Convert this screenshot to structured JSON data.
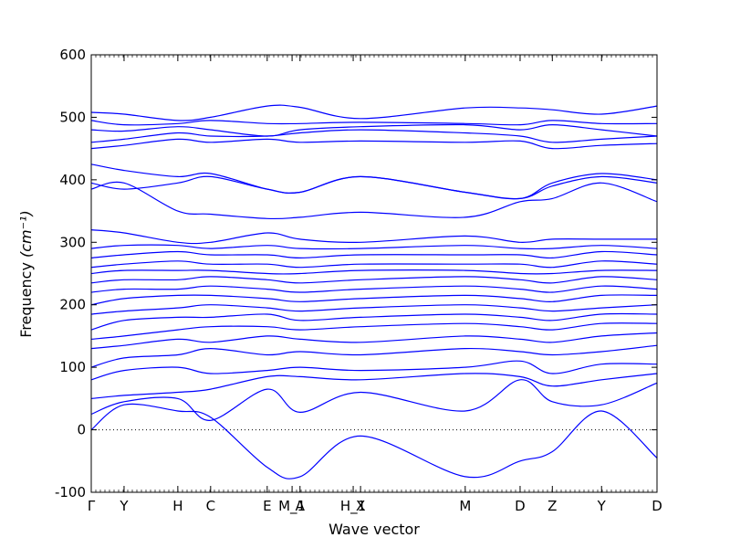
{
  "chart_data": {
    "type": "line",
    "title": "",
    "xlabel": "Wave vector",
    "ylabel": "Frequency",
    "ylabel_unit_math": "(cm⁻¹)",
    "ylim": [
      -100,
      600
    ],
    "yticks": [
      -100,
      0,
      100,
      200,
      300,
      400,
      500,
      600
    ],
    "xlim": [
      0,
      1
    ],
    "xticks": [
      {
        "label": "Γ",
        "pos": 0.0
      },
      {
        "label": "Y",
        "pos": 0.058
      },
      {
        "label": "H",
        "pos": 0.153
      },
      {
        "label": "C",
        "pos": 0.211
      },
      {
        "label": "E",
        "pos": 0.311
      },
      {
        "label": "M_1",
        "pos": 0.355
      },
      {
        "label": "A",
        "pos": 0.369
      },
      {
        "label": "H_1",
        "pos": 0.463
      },
      {
        "label": "X",
        "pos": 0.476
      },
      {
        "label": "M",
        "pos": 0.661
      },
      {
        "label": "D",
        "pos": 0.758
      },
      {
        "label": "Z",
        "pos": 0.815
      },
      {
        "label": "Y",
        "pos": 0.902
      },
      {
        "label": "D",
        "pos": 1.0
      }
    ],
    "zero_line": true,
    "line_color": "#0000ff",
    "series": [
      {
        "x": [
          0,
          0.058,
          0.153,
          0.211,
          0.311,
          0.369,
          0.476,
          0.661,
          0.758,
          0.815,
          0.902,
          1.0
        ],
        "y": [
          0,
          40,
          30,
          20,
          -60,
          -75,
          -10,
          -75,
          -50,
          -35,
          30,
          -45
        ]
      },
      {
        "x": [
          0,
          0.058,
          0.153,
          0.211,
          0.311,
          0.369,
          0.476,
          0.661,
          0.758,
          0.815,
          0.902,
          1.0
        ],
        "y": [
          25,
          45,
          50,
          15,
          65,
          28,
          60,
          30,
          80,
          45,
          40,
          75
        ]
      },
      {
        "x": [
          0,
          0.058,
          0.153,
          0.211,
          0.311,
          0.369,
          0.476,
          0.661,
          0.758,
          0.815,
          0.902,
          1.0
        ],
        "y": [
          50,
          55,
          60,
          65,
          85,
          85,
          80,
          90,
          85,
          70,
          80,
          90
        ]
      },
      {
        "x": [
          0,
          0.058,
          0.153,
          0.211,
          0.311,
          0.369,
          0.476,
          0.661,
          0.758,
          0.815,
          0.902,
          1.0
        ],
        "y": [
          80,
          95,
          100,
          90,
          95,
          100,
          95,
          100,
          110,
          90,
          105,
          105
        ]
      },
      {
        "x": [
          0,
          0.058,
          0.153,
          0.211,
          0.311,
          0.369,
          0.476,
          0.661,
          0.758,
          0.815,
          0.902,
          1.0
        ],
        "y": [
          100,
          115,
          120,
          130,
          120,
          125,
          120,
          130,
          125,
          120,
          125,
          135
        ]
      },
      {
        "x": [
          0,
          0.058,
          0.153,
          0.211,
          0.311,
          0.369,
          0.476,
          0.661,
          0.758,
          0.815,
          0.902,
          1.0
        ],
        "y": [
          130,
          135,
          145,
          140,
          150,
          145,
          140,
          150,
          145,
          140,
          150,
          155
        ]
      },
      {
        "x": [
          0,
          0.058,
          0.153,
          0.211,
          0.311,
          0.369,
          0.476,
          0.661,
          0.758,
          0.815,
          0.902,
          1.0
        ],
        "y": [
          145,
          150,
          160,
          165,
          165,
          160,
          165,
          170,
          165,
          160,
          170,
          170
        ]
      },
      {
        "x": [
          0,
          0.058,
          0.153,
          0.211,
          0.311,
          0.369,
          0.476,
          0.661,
          0.758,
          0.815,
          0.902,
          1.0
        ],
        "y": [
          160,
          175,
          180,
          180,
          185,
          175,
          180,
          185,
          180,
          175,
          185,
          185
        ]
      },
      {
        "x": [
          0,
          0.058,
          0.153,
          0.211,
          0.311,
          0.369,
          0.476,
          0.661,
          0.758,
          0.815,
          0.902,
          1.0
        ],
        "y": [
          185,
          190,
          195,
          200,
          195,
          190,
          195,
          200,
          195,
          190,
          195,
          200
        ]
      },
      {
        "x": [
          0,
          0.058,
          0.153,
          0.211,
          0.311,
          0.369,
          0.476,
          0.661,
          0.758,
          0.815,
          0.902,
          1.0
        ],
        "y": [
          200,
          210,
          215,
          215,
          210,
          205,
          210,
          215,
          210,
          205,
          215,
          215
        ]
      },
      {
        "x": [
          0,
          0.058,
          0.153,
          0.211,
          0.311,
          0.369,
          0.476,
          0.661,
          0.758,
          0.815,
          0.902,
          1.0
        ],
        "y": [
          220,
          225,
          225,
          230,
          225,
          220,
          225,
          230,
          225,
          220,
          230,
          225
        ]
      },
      {
        "x": [
          0,
          0.058,
          0.153,
          0.211,
          0.311,
          0.369,
          0.476,
          0.661,
          0.758,
          0.815,
          0.902,
          1.0
        ],
        "y": [
          235,
          240,
          240,
          245,
          240,
          235,
          240,
          245,
          240,
          235,
          245,
          240
        ]
      },
      {
        "x": [
          0,
          0.058,
          0.153,
          0.211,
          0.311,
          0.369,
          0.476,
          0.661,
          0.758,
          0.815,
          0.902,
          1.0
        ],
        "y": [
          250,
          255,
          255,
          255,
          250,
          250,
          255,
          255,
          250,
          250,
          255,
          255
        ]
      },
      {
        "x": [
          0,
          0.058,
          0.153,
          0.211,
          0.311,
          0.369,
          0.476,
          0.661,
          0.758,
          0.815,
          0.902,
          1.0
        ],
        "y": [
          260,
          265,
          270,
          265,
          265,
          260,
          265,
          265,
          265,
          260,
          270,
          265
        ]
      },
      {
        "x": [
          0,
          0.058,
          0.153,
          0.211,
          0.311,
          0.369,
          0.476,
          0.661,
          0.758,
          0.815,
          0.902,
          1.0
        ],
        "y": [
          275,
          280,
          285,
          280,
          280,
          275,
          280,
          280,
          280,
          275,
          285,
          280
        ]
      },
      {
        "x": [
          0,
          0.058,
          0.153,
          0.211,
          0.311,
          0.369,
          0.476,
          0.661,
          0.758,
          0.815,
          0.902,
          1.0
        ],
        "y": [
          290,
          295,
          295,
          290,
          295,
          290,
          290,
          295,
          290,
          290,
          295,
          290
        ]
      },
      {
        "x": [
          0,
          0.058,
          0.153,
          0.211,
          0.311,
          0.369,
          0.476,
          0.661,
          0.758,
          0.815,
          0.902,
          1.0
        ],
        "y": [
          320,
          315,
          300,
          300,
          315,
          305,
          300,
          310,
          300,
          305,
          305,
          305
        ]
      },
      {
        "x": [
          0,
          0.058,
          0.153,
          0.211,
          0.311,
          0.369,
          0.476,
          0.661,
          0.758,
          0.815,
          0.902,
          1.0
        ],
        "y": [
          385,
          395,
          350,
          345,
          338,
          340,
          348,
          340,
          365,
          370,
          395,
          365
        ]
      },
      {
        "x": [
          0,
          0.058,
          0.153,
          0.211,
          0.311,
          0.369,
          0.476,
          0.661,
          0.758,
          0.815,
          0.902,
          1.0
        ],
        "y": [
          395,
          385,
          395,
          405,
          385,
          380,
          405,
          380,
          370,
          390,
          405,
          395
        ]
      },
      {
        "x": [
          0,
          0.058,
          0.153,
          0.211,
          0.311,
          0.369,
          0.476,
          0.661,
          0.758,
          0.815,
          0.902,
          1.0
        ],
        "y": [
          425,
          415,
          405,
          410,
          385,
          380,
          405,
          380,
          370,
          395,
          410,
          400
        ]
      },
      {
        "x": [
          0,
          0.058,
          0.153,
          0.211,
          0.311,
          0.369,
          0.476,
          0.661,
          0.758,
          0.815,
          0.902,
          1.0
        ],
        "y": [
          450,
          455,
          465,
          460,
          465,
          460,
          462,
          460,
          462,
          450,
          455,
          458
        ]
      },
      {
        "x": [
          0,
          0.058,
          0.153,
          0.211,
          0.311,
          0.369,
          0.476,
          0.661,
          0.758,
          0.815,
          0.902,
          1.0
        ],
        "y": [
          460,
          465,
          475,
          470,
          470,
          475,
          480,
          475,
          470,
          460,
          465,
          470
        ]
      },
      {
        "x": [
          0,
          0.058,
          0.153,
          0.211,
          0.311,
          0.369,
          0.476,
          0.661,
          0.758,
          0.815,
          0.902,
          1.0
        ],
        "y": [
          480,
          478,
          485,
          480,
          470,
          480,
          485,
          488,
          480,
          488,
          480,
          470
        ]
      },
      {
        "x": [
          0,
          0.058,
          0.153,
          0.211,
          0.311,
          0.369,
          0.476,
          0.661,
          0.758,
          0.815,
          0.902,
          1.0
        ],
        "y": [
          495,
          488,
          490,
          495,
          490,
          490,
          492,
          490,
          488,
          495,
          490,
          490
        ]
      },
      {
        "x": [
          0,
          0.058,
          0.153,
          0.211,
          0.311,
          0.369,
          0.476,
          0.661,
          0.758,
          0.815,
          0.902,
          1.0
        ],
        "y": [
          508,
          505,
          495,
          500,
          518,
          516,
          498,
          515,
          515,
          512,
          505,
          518
        ]
      }
    ]
  }
}
